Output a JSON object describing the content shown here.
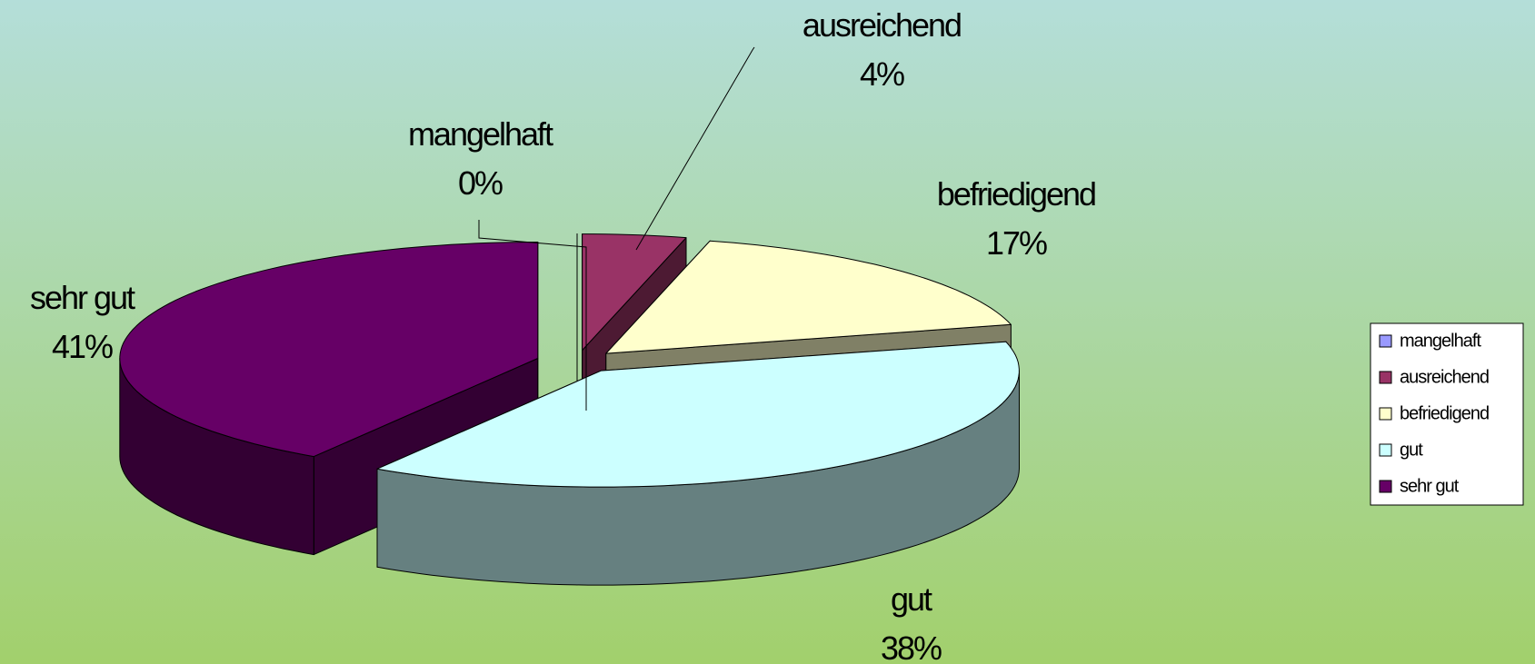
{
  "chart_data": {
    "type": "pie3d",
    "categories": [
      "mangelhaft",
      "ausreichend",
      "befriedigend",
      "gut",
      "sehr gut"
    ],
    "values": [
      0,
      4,
      17,
      38,
      41
    ],
    "value_labels": [
      "0%",
      "4%",
      "17%",
      "38%",
      "41%"
    ],
    "colors": [
      "#9999ff",
      "#993366",
      "#ffffcc",
      "#ccffff",
      "#660066"
    ],
    "legend": "right"
  }
}
